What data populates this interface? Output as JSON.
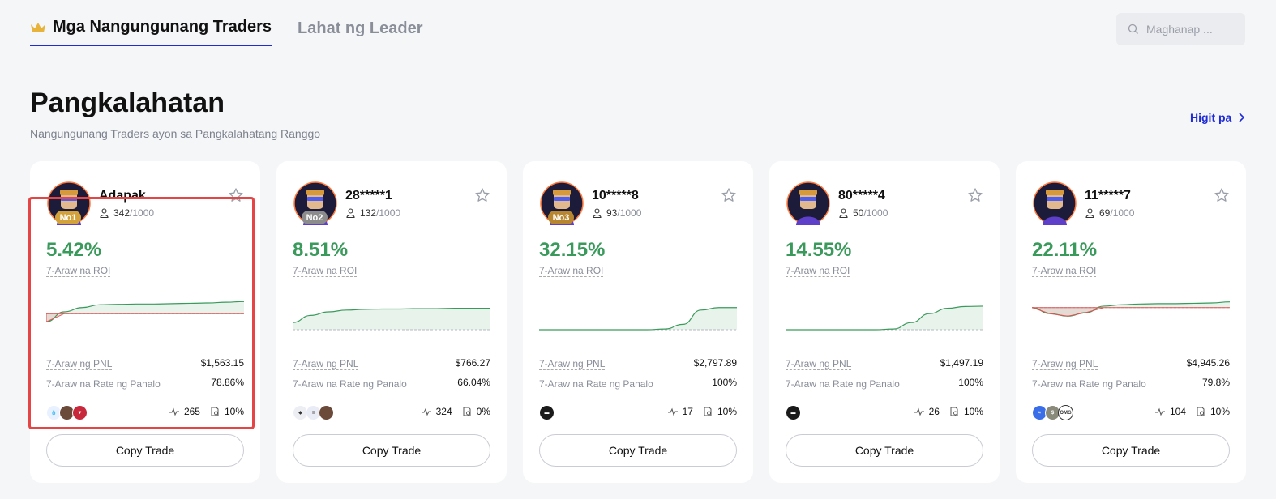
{
  "tabs": [
    {
      "label": "Mga Nangungunang Traders",
      "active": true,
      "icon": "crown-icon"
    },
    {
      "label": "Lahat ng Leader",
      "active": false
    }
  ],
  "search": {
    "placeholder": "Maghanap ..."
  },
  "section": {
    "title": "Pangkalahatan",
    "subtitle": "Nangungunang Traders ayon sa Pangkalahatang Ranggo",
    "more_label": "Higit pa"
  },
  "labels": {
    "roi": "7-Araw na ROI",
    "pnl": "7-Araw ng PNL",
    "win_rate": "7-Araw na Rate ng Panalo",
    "copy": "Copy Trade"
  },
  "colors": {
    "accent": "#1e2bd6",
    "positive": "#3a9a5b",
    "negative": "#e05555",
    "highlight": "#e54545"
  },
  "traders": [
    {
      "rank": "No1",
      "name": "Adapak",
      "followers": "342",
      "max_followers": "/1000",
      "roi": "5.42%",
      "pnl": "$1,563.15",
      "win_rate": "78.86%",
      "trades": "265",
      "share": "10%",
      "coins": [
        "drop-coin",
        "avatar-coin",
        "red-coin"
      ],
      "curve": [
        0.22,
        0.5,
        0.62,
        0.7,
        0.71,
        0.72,
        0.72,
        0.73,
        0.74,
        0.75,
        0.77,
        0.79
      ],
      "baseline": 0.45,
      "selected": true
    },
    {
      "rank": "No2",
      "name": "28*****1",
      "followers": "132",
      "max_followers": "/1000",
      "roi": "8.51%",
      "pnl": "$766.27",
      "win_rate": "66.04%",
      "trades": "324",
      "share": "0%",
      "coins": [
        "eth-coin",
        "sol-coin",
        "avatar-coin"
      ],
      "curve": [
        0.2,
        0.4,
        0.5,
        0.55,
        0.57,
        0.58,
        0.58,
        0.59,
        0.59,
        0.6,
        0.6,
        0.6
      ],
      "baseline": 0.0,
      "selected": false
    },
    {
      "rank": "No3",
      "name": "10*****8",
      "followers": "93",
      "max_followers": "/1000",
      "roi": "32.15%",
      "pnl": "$2,797.89",
      "win_rate": "100%",
      "trades": "17",
      "share": "10%",
      "coins": [
        "black-coin"
      ],
      "curve": [
        0.0,
        0.0,
        0.0,
        0.0,
        0.0,
        0.0,
        0.0,
        0.02,
        0.15,
        0.55,
        0.62,
        0.62
      ],
      "baseline": 0.0,
      "selected": false
    },
    {
      "rank": "",
      "name": "80*****4",
      "followers": "50",
      "max_followers": "/1000",
      "roi": "14.55%",
      "pnl": "$1,497.19",
      "win_rate": "100%",
      "trades": "26",
      "share": "10%",
      "coins": [
        "black-coin"
      ],
      "curve": [
        0.0,
        0.0,
        0.0,
        0.0,
        0.0,
        0.0,
        0.02,
        0.2,
        0.45,
        0.6,
        0.65,
        0.66
      ],
      "baseline": 0.0,
      "selected": false
    },
    {
      "rank": "",
      "name": "11*****7",
      "followers": "69",
      "max_followers": "/1000",
      "roi": "22.11%",
      "pnl": "$4,945.26",
      "win_rate": "79.8%",
      "trades": "104",
      "share": "10%",
      "coins": [
        "wave-coin",
        "usd-coin",
        "omg-coin"
      ],
      "curve": [
        0.62,
        0.45,
        0.38,
        0.48,
        0.66,
        0.7,
        0.72,
        0.73,
        0.73,
        0.74,
        0.75,
        0.78
      ],
      "baseline": 0.62,
      "selected": false
    }
  ]
}
